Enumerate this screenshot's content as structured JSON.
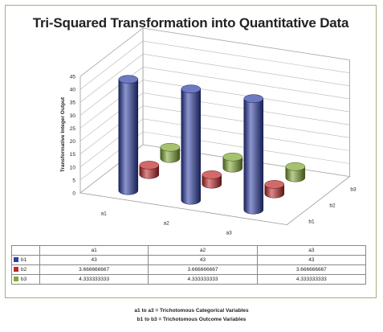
{
  "chart_data": {
    "type": "bar",
    "title": "Tri-Squared Transformation into Quantitative Data",
    "ylabel": "Transformative Integer Output",
    "ylim": [
      0,
      45
    ],
    "yticks": [
      0,
      5,
      10,
      15,
      20,
      25,
      30,
      35,
      40,
      45
    ],
    "categories": [
      "a1",
      "a2",
      "a3"
    ],
    "series": [
      {
        "name": "b1",
        "color": "#2e3fa6",
        "values": [
          43,
          43,
          43
        ],
        "display": [
          "43",
          "43",
          "43"
        ]
      },
      {
        "name": "b2",
        "color": "#c0282a",
        "values": [
          3.666666667,
          3.666666667,
          3.666666667
        ],
        "display": [
          "3.666666667",
          "3.666666667",
          "3.666666667"
        ]
      },
      {
        "name": "b3",
        "color": "#80a832",
        "values": [
          4.333333333,
          4.333333333,
          4.333333333
        ],
        "display": [
          "4.333333333",
          "4.333333333",
          "4.333333333"
        ]
      }
    ],
    "notes": [
      "a1 to a3 = Trichotomous Categorical Variables",
      "b1 to b3 = Trichotomous Outcome Variables"
    ]
  }
}
